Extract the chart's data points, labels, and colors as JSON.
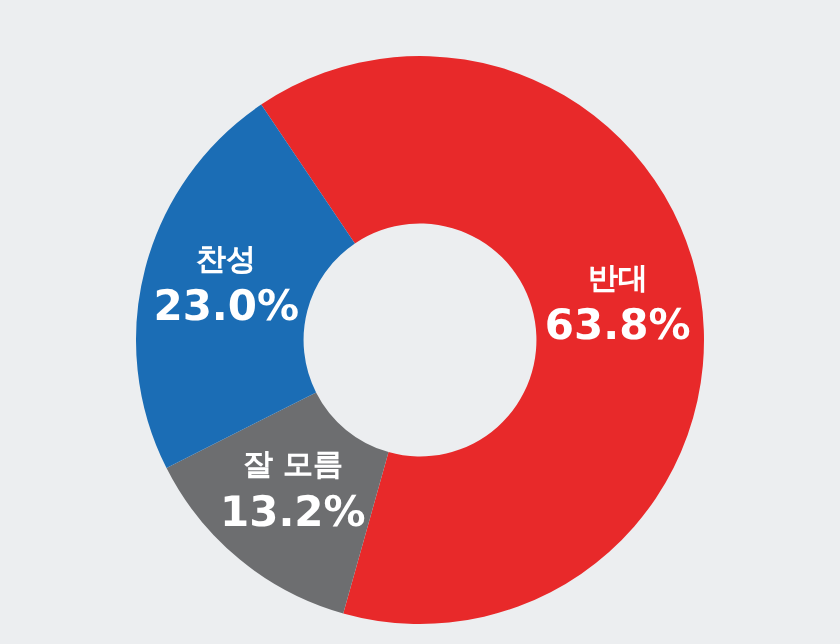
{
  "chart_data": {
    "type": "donut",
    "categories": [
      "반대",
      "잘 모름",
      "찬성"
    ],
    "values": [
      63.8,
      13.2,
      23.0
    ],
    "colors": [
      "#e8292a",
      "#6d6e70",
      "#1b6db5"
    ],
    "value_labels": [
      "63.8%",
      "13.2%",
      "23.0%"
    ],
    "legend": false
  }
}
